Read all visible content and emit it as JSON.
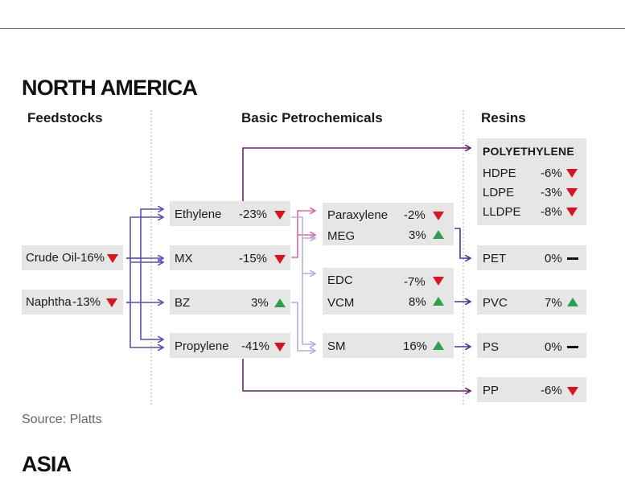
{
  "region_title": "NORTH AMERICA",
  "next_region_title": "ASIA",
  "columns": {
    "feedstocks": "Feedstocks",
    "basic": "Basic Petrochemicals",
    "resins": "Resins"
  },
  "source": "Source: Platts",
  "colors": {
    "down": "#d7141f",
    "up": "#2aa14a",
    "flat": "#111111",
    "feed_arrow": "#5a4fb8",
    "basic_arrow": "#e06aa0",
    "light_arrow": "#b7aee0",
    "resin_arrow": "#6a2268",
    "box": "#e6e6e6"
  },
  "feedstocks": [
    {
      "name": "Crude Oil",
      "change": "-16%",
      "trend": "down"
    },
    {
      "name": "Naphtha",
      "change": "-13%",
      "trend": "down"
    }
  ],
  "basic": [
    {
      "name": "Ethylene",
      "change": "-23%",
      "trend": "down"
    },
    {
      "name": "MX",
      "change": "-15%",
      "trend": "down"
    },
    {
      "name": "BZ",
      "change": "3%",
      "trend": "up"
    },
    {
      "name": "Propylene",
      "change": "-41%",
      "trend": "down"
    }
  ],
  "intermediates": [
    {
      "name": "Paraxylene",
      "change": "-2%",
      "trend": "down"
    },
    {
      "name": "MEG",
      "change": "3%",
      "trend": "up"
    },
    {
      "name": "EDC",
      "change": "-7%",
      "trend": "down"
    },
    {
      "name": "VCM",
      "change": "8%",
      "trend": "up"
    },
    {
      "name": "SM",
      "change": "16%",
      "trend": "up"
    }
  ],
  "polyethylene": {
    "title": "POLYETHYLENE",
    "items": [
      {
        "name": "HDPE",
        "change": "-6%",
        "trend": "down"
      },
      {
        "name": "LDPE",
        "change": "-3%",
        "trend": "down"
      },
      {
        "name": "LLDPE",
        "change": "-8%",
        "trend": "down"
      }
    ]
  },
  "resins": [
    {
      "name": "PET",
      "change": "0%",
      "trend": "flat"
    },
    {
      "name": "PVC",
      "change": "7%",
      "trend": "up"
    },
    {
      "name": "PS",
      "change": "0%",
      "trend": "flat"
    },
    {
      "name": "PP",
      "change": "-6%",
      "trend": "down"
    }
  ]
}
